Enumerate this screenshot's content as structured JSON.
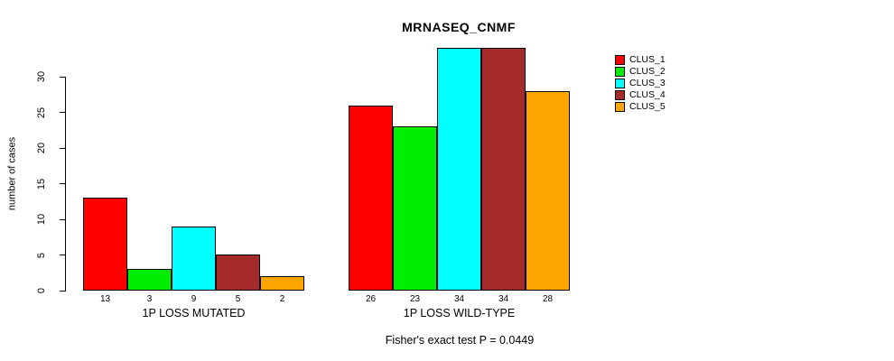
{
  "title": "MRNASEQ_CNMF",
  "caption": "Fisher's exact test P = 0.0449",
  "chart_data": {
    "type": "bar",
    "title": "MRNASEQ_CNMF",
    "xlabel": "",
    "ylabel": "number of cases",
    "yticks": [
      0,
      5,
      10,
      15,
      20,
      25,
      30
    ],
    "ylim": [
      0,
      34
    ],
    "grid": false,
    "legend_position": "right",
    "annotation": "Fisher's exact test P = 0.0449",
    "categories": [
      "1P LOSS MUTATED",
      "1P LOSS WILD-TYPE"
    ],
    "series": [
      {
        "name": "CLUS_1",
        "color": "#FF0000",
        "values": [
          13,
          26
        ]
      },
      {
        "name": "CLUS_2",
        "color": "#00EE00",
        "values": [
          3,
          23
        ]
      },
      {
        "name": "CLUS_3",
        "color": "#00FFFF",
        "values": [
          9,
          34
        ]
      },
      {
        "name": "CLUS_4",
        "color": "#A52A2A",
        "values": [
          5,
          34
        ]
      },
      {
        "name": "CLUS_5",
        "color": "#FFA500",
        "values": [
          2,
          28
        ]
      }
    ],
    "groups": [
      {
        "label": "1P LOSS MUTATED",
        "values": [
          13,
          3,
          9,
          5,
          2
        ]
      },
      {
        "label": "1P LOSS WILD-TYPE",
        "values": [
          26,
          23,
          34,
          34,
          28
        ]
      }
    ]
  }
}
